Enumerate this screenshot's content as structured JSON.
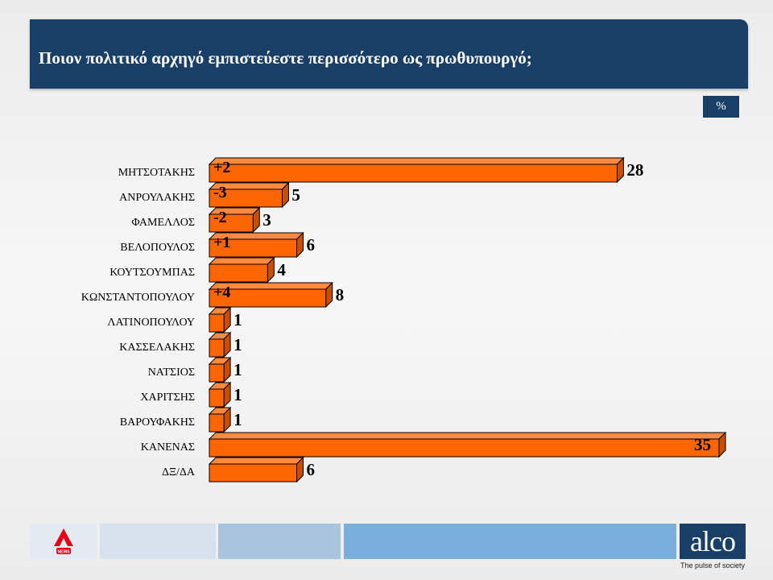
{
  "title": "Ποιον πολιτικό αρχηγό εμπιστεύεστε περισσότερο ως πρωθυπουργό;",
  "unit": "%",
  "colors": {
    "banner": "#1a3f66",
    "bar": "#ff6600",
    "bar_edge": "#000000"
  },
  "footer": {
    "news_logo_icon": "alpha-news-logo-icon",
    "brand": "alco",
    "tagline": "The pulse of society"
  },
  "chart_data": {
    "type": "bar",
    "orientation": "horizontal",
    "categories": [
      "ΜΗΤΣΟΤΑΚΗΣ",
      "ΑΝΡΟΥΛΑΚΗΣ",
      "ΦΑΜΕΛΛΟΣ",
      "ΒΕΛΟΠΟΥΛΟΣ",
      "ΚΟΥΤΣΟΥΜΠΑΣ",
      "ΚΩΝΣΤΑΝΤΟΠΟΥΛΟΥ",
      "ΛΑΤΙΝΟΠΟΥΛΟΥ",
      "ΚΑΣΣΕΛΑΚΗΣ",
      "ΝΑΤΣΙΟΣ",
      "ΧΑΡΙΤΣΗΣ",
      "ΒΑΡΟΥΦΑΚΗΣ",
      "ΚΑΝΕΝΑΣ",
      "ΔΞ/ΔΑ"
    ],
    "values": [
      28,
      5,
      3,
      6,
      4,
      8,
      1,
      1,
      1,
      1,
      1,
      35,
      6
    ],
    "changes": [
      "+2",
      "-3",
      "-2",
      "+1",
      "",
      "+4",
      "",
      "",
      "",
      "",
      "",
      "",
      ""
    ],
    "xlim": [
      0,
      35
    ],
    "grid": false,
    "legend": "none"
  }
}
